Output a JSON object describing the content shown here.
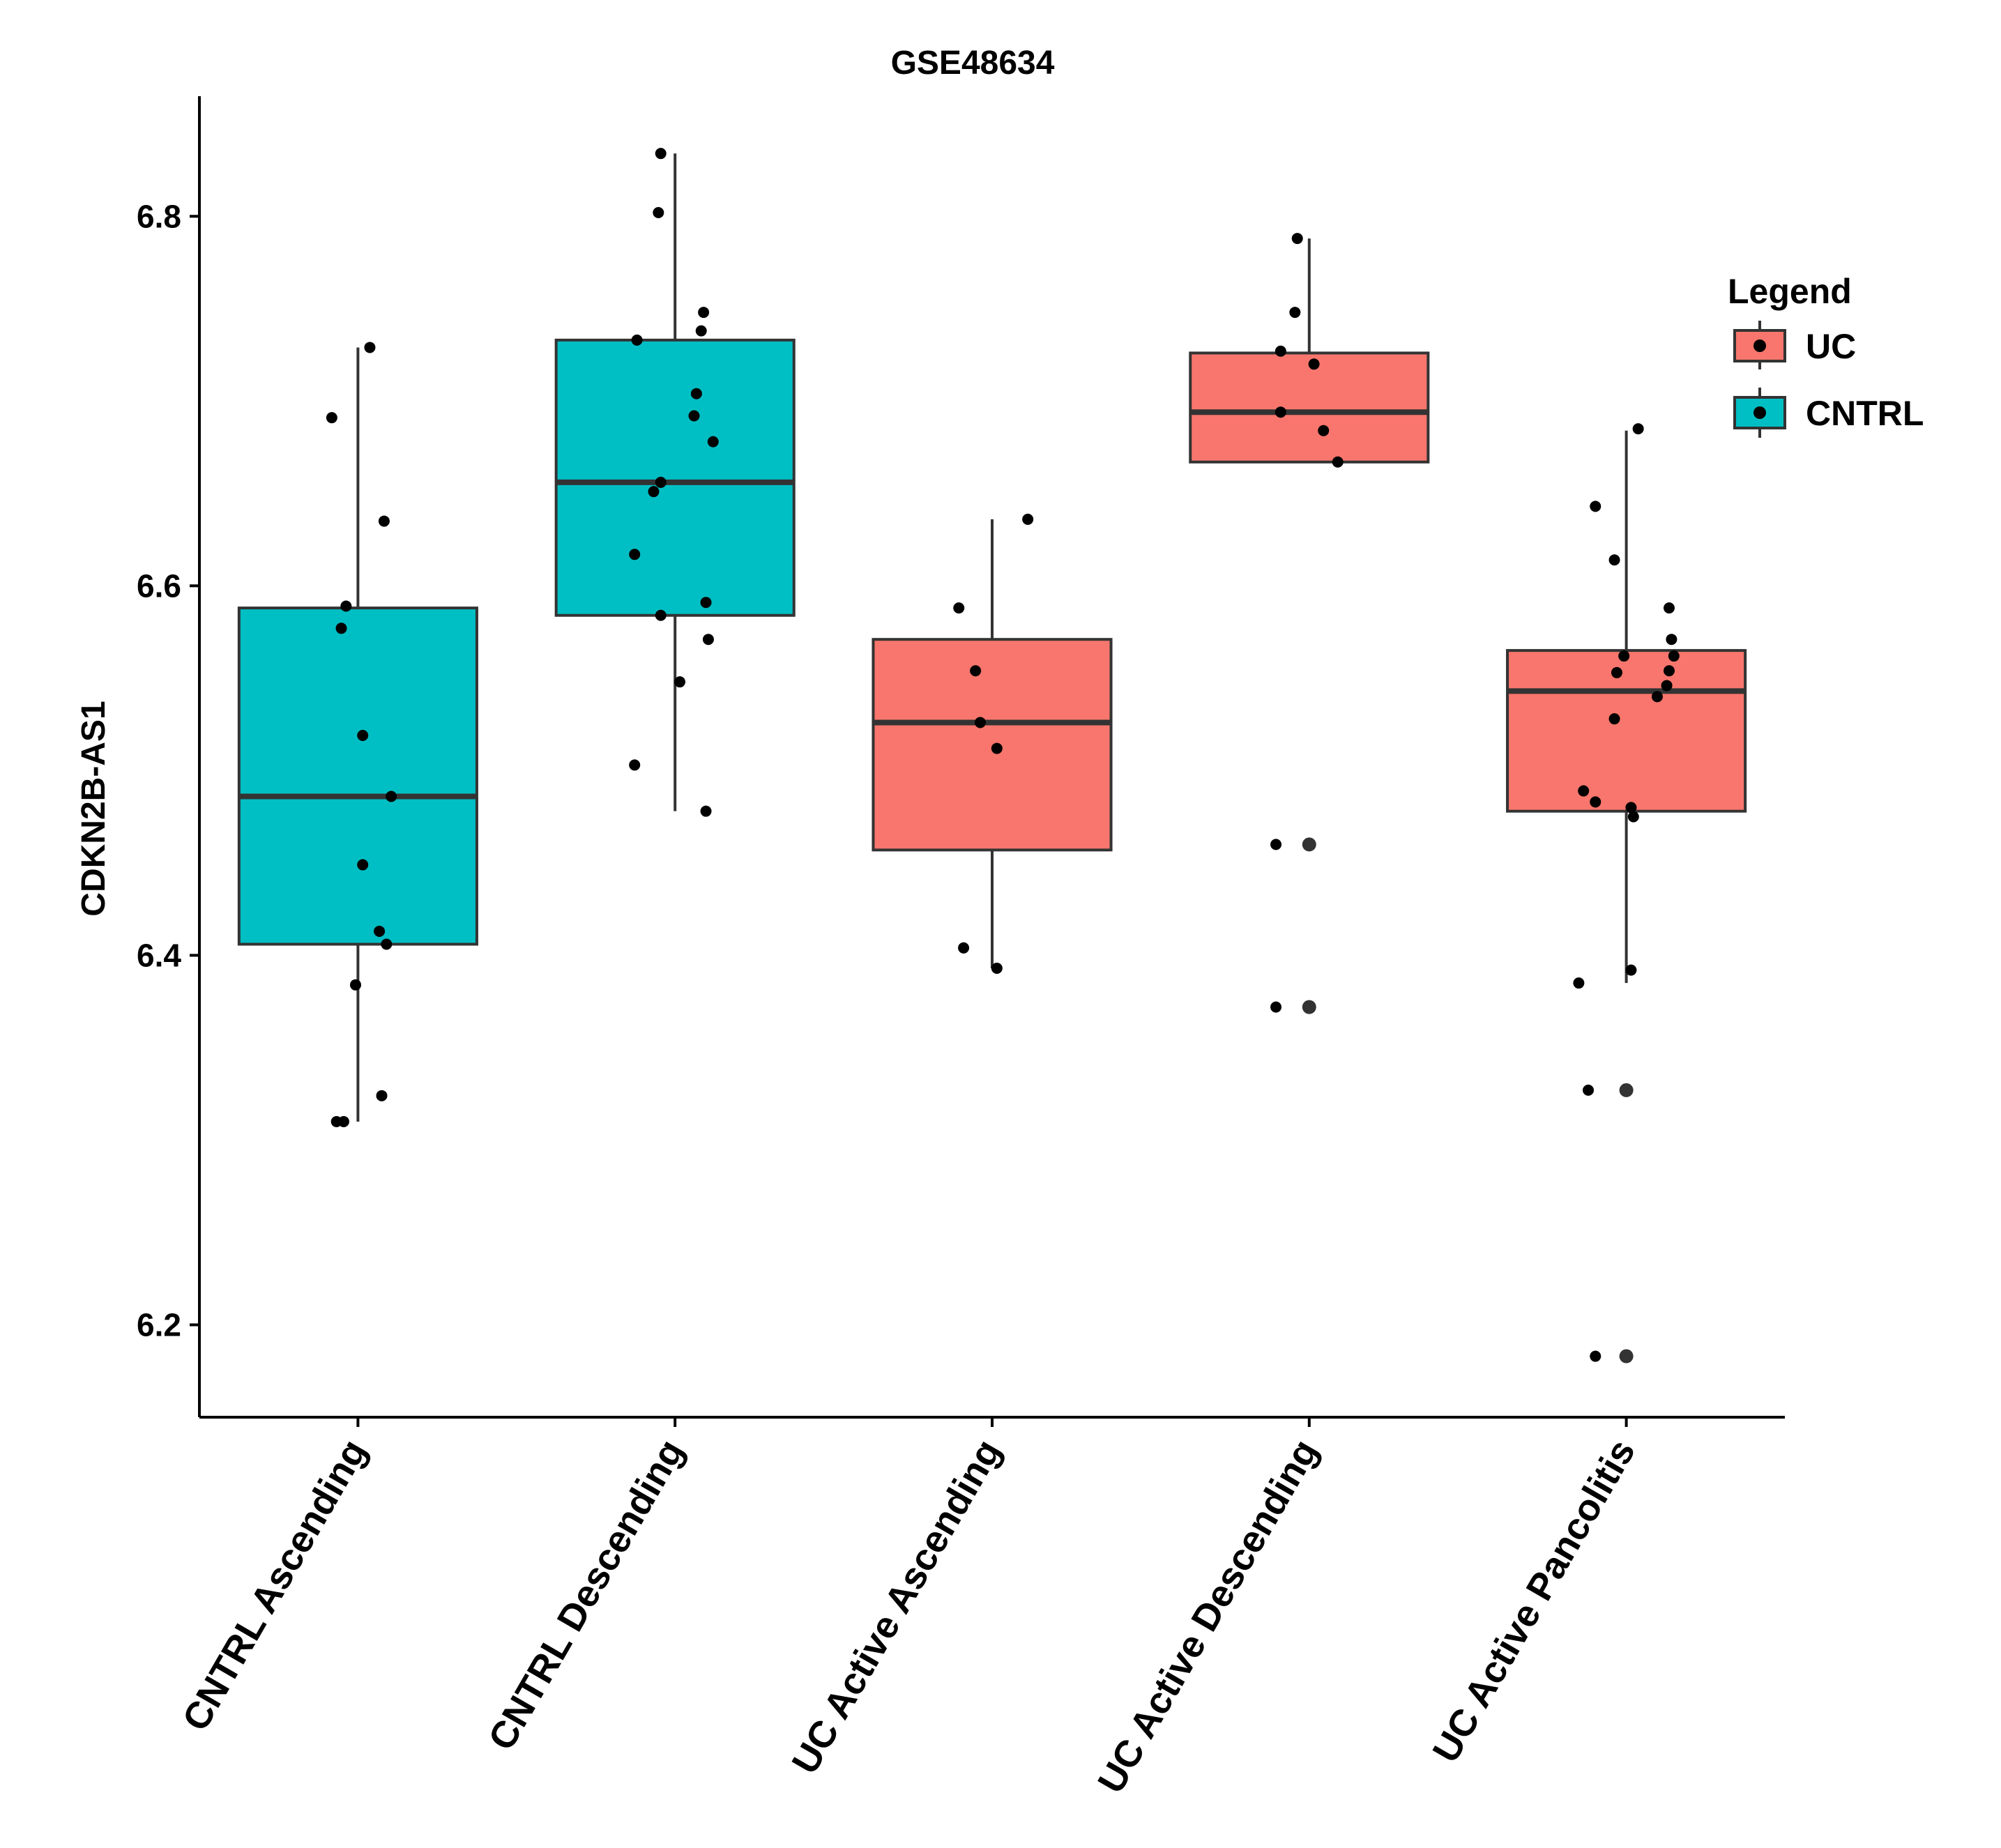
{
  "chart_data": {
    "type": "boxplot",
    "title": "GSE48634",
    "xlabel": "",
    "ylabel": "CDKN2B-AS1",
    "ylim": [
      6.15,
      6.865
    ],
    "yticks": [
      6.2,
      6.4,
      6.6,
      6.8
    ],
    "ytick_labels": [
      "6.2",
      "6.4",
      "6.6",
      "6.8"
    ],
    "grid": false,
    "legend": {
      "title": "Legend",
      "position": "right",
      "entries": [
        {
          "label": "UC",
          "color": "#F8766D"
        },
        {
          "label": "CNTRL",
          "color": "#00BFC4"
        }
      ]
    },
    "colors": {
      "UC": "#F8766D",
      "CNTRL": "#00BFC4",
      "box_line": "#333333",
      "point": "#000000"
    },
    "categories": [
      "CNTRL Ascending",
      "CNTRL Descending",
      "UC Active Ascending",
      "UC Active Descending",
      "UC Active Pancolitis"
    ],
    "groups": [
      {
        "name": "CNTRL Ascending",
        "group": "CNTRL",
        "stats": {
          "whisker_low": 6.31,
          "q1": 6.406,
          "median": 6.486,
          "q3": 6.588,
          "whisker_high": 6.729
        },
        "outliers": [],
        "points": [
          [
            -0.12,
            6.31
          ],
          [
            -0.22,
            6.691
          ],
          [
            0.1,
            6.729
          ],
          [
            0.22,
            6.635
          ],
          [
            -0.1,
            6.589
          ],
          [
            -0.14,
            6.577
          ],
          [
            0.04,
            6.519
          ],
          [
            0.28,
            6.486
          ],
          [
            0.04,
            6.449
          ],
          [
            0.18,
            6.413
          ],
          [
            0.24,
            6.406
          ],
          [
            -0.02,
            6.384
          ],
          [
            0.2,
            6.324
          ],
          [
            -0.18,
            6.31
          ]
        ]
      },
      {
        "name": "CNTRL Descending",
        "group": "CNTRL",
        "stats": {
          "whisker_low": 6.478,
          "q1": 6.584,
          "median": 6.656,
          "q3": 6.733,
          "whisker_high": 6.834
        },
        "outliers": [],
        "points": [
          [
            -0.12,
            6.834
          ],
          [
            -0.14,
            6.802
          ],
          [
            0.24,
            6.748
          ],
          [
            0.22,
            6.738
          ],
          [
            -0.32,
            6.733
          ],
          [
            0.18,
            6.704
          ],
          [
            0.16,
            6.692
          ],
          [
            0.32,
            6.678
          ],
          [
            -0.12,
            6.656
          ],
          [
            -0.18,
            6.651
          ],
          [
            -0.34,
            6.617
          ],
          [
            0.26,
            6.591
          ],
          [
            -0.12,
            6.584
          ],
          [
            0.28,
            6.571
          ],
          [
            0.04,
            6.548
          ],
          [
            -0.34,
            6.503
          ],
          [
            0.26,
            6.478
          ]
        ]
      },
      {
        "name": "UC Active Ascending",
        "group": "UC",
        "stats": {
          "whisker_low": 6.393,
          "q1": 6.457,
          "median": 6.526,
          "q3": 6.571,
          "whisker_high": 6.636
        },
        "outliers": [],
        "points": [
          [
            0.3,
            6.636
          ],
          [
            -0.28,
            6.588
          ],
          [
            -0.14,
            6.554
          ],
          [
            -0.1,
            6.526
          ],
          [
            0.04,
            6.512
          ],
          [
            -0.24,
            6.404
          ],
          [
            0.04,
            6.393
          ]
        ]
      },
      {
        "name": "UC Active Descending",
        "group": "UC",
        "stats": {
          "whisker_low": 6.667,
          "q1": 6.667,
          "median": 6.694,
          "q3": 6.726,
          "whisker_high": 6.788
        },
        "outliers": [
          6.46,
          6.372
        ],
        "points": [
          [
            -0.1,
            6.788
          ],
          [
            -0.12,
            6.748
          ],
          [
            -0.24,
            6.727
          ],
          [
            0.04,
            6.72
          ],
          [
            -0.24,
            6.694
          ],
          [
            0.12,
            6.684
          ],
          [
            0.24,
            6.667
          ],
          [
            -0.28,
            6.46
          ],
          [
            -0.28,
            6.372
          ]
        ]
      },
      {
        "name": "UC Active Pancolitis",
        "group": "UC",
        "stats": {
          "whisker_low": 6.385,
          "q1": 6.478,
          "median": 6.543,
          "q3": 6.565,
          "whisker_high": 6.684
        },
        "outliers": [
          6.327,
          6.183
        ],
        "points": [
          [
            0.1,
            6.685
          ],
          [
            -0.26,
            6.643
          ],
          [
            -0.1,
            6.614
          ],
          [
            0.36,
            6.588
          ],
          [
            0.38,
            6.571
          ],
          [
            -0.02,
            6.562
          ],
          [
            0.4,
            6.562
          ],
          [
            -0.08,
            6.553
          ],
          [
            0.36,
            6.554
          ],
          [
            0.34,
            6.546
          ],
          [
            0.26,
            6.54
          ],
          [
            -0.1,
            6.528
          ],
          [
            -0.36,
            6.489
          ],
          [
            -0.26,
            6.483
          ],
          [
            0.04,
            6.48
          ],
          [
            0.06,
            6.475
          ],
          [
            0.04,
            6.392
          ],
          [
            -0.4,
            6.385
          ],
          [
            -0.32,
            6.327
          ],
          [
            -0.26,
            6.183
          ]
        ]
      }
    ]
  }
}
